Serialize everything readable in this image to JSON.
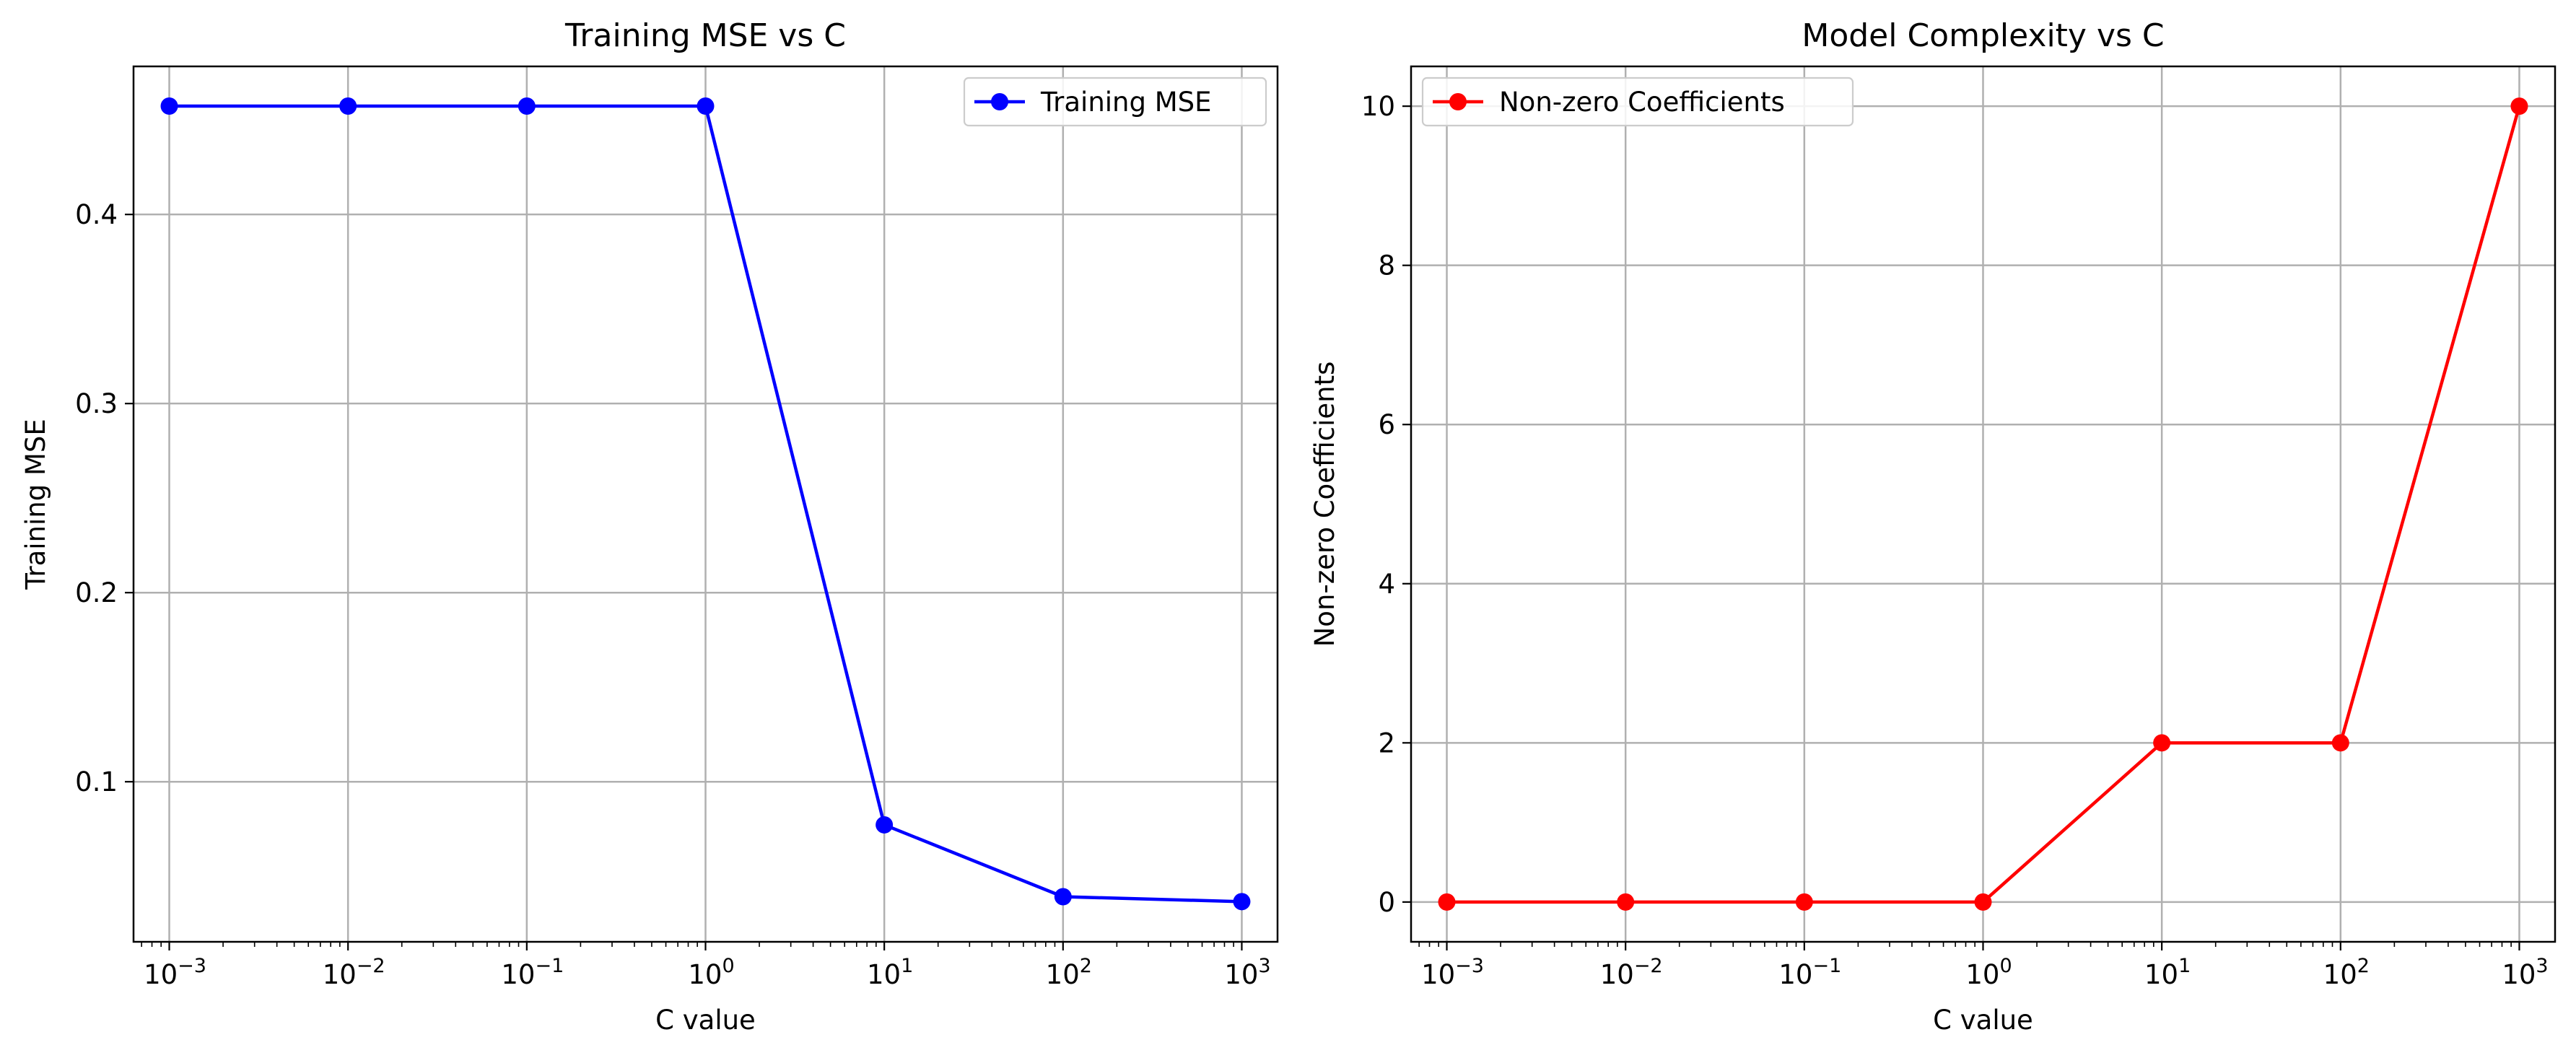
{
  "chart_data": [
    {
      "type": "line",
      "title": "Training MSE vs C",
      "xlabel": "C value",
      "ylabel": "Training MSE",
      "xscale": "log",
      "xlim": [
        0.000631,
        1585
      ],
      "ylim": [
        0.01535,
        0.4783
      ],
      "x": [
        0.001,
        0.01,
        0.1,
        1,
        10,
        100,
        1000
      ],
      "x_tick_labels": [
        {
          "base": "10",
          "exp": "−3"
        },
        {
          "base": "10",
          "exp": "−2"
        },
        {
          "base": "10",
          "exp": "−1"
        },
        {
          "base": "10",
          "exp": "0"
        },
        {
          "base": "10",
          "exp": "1"
        },
        {
          "base": "10",
          "exp": "2"
        },
        {
          "base": "10",
          "exp": "3"
        }
      ],
      "y_ticks": [
        0.1,
        0.2,
        0.3,
        0.4
      ],
      "y_tick_labels": [
        "0.1",
        "0.2",
        "0.3",
        "0.4"
      ],
      "grid": true,
      "legend_position": "top-right",
      "series": [
        {
          "name": "Training MSE",
          "color": "#0000ff",
          "marker": "circle",
          "values": [
            0.4573,
            0.4573,
            0.4573,
            0.4573,
            0.0772,
            0.0392,
            0.0366
          ]
        }
      ]
    },
    {
      "type": "line",
      "title": "Model Complexity vs C",
      "xlabel": "C value",
      "ylabel": "Non-zero Coefficients",
      "xscale": "log",
      "xlim": [
        0.000631,
        1585
      ],
      "ylim": [
        -0.5,
        10.5
      ],
      "x": [
        0.001,
        0.01,
        0.1,
        1,
        10,
        100,
        1000
      ],
      "x_tick_labels": [
        {
          "base": "10",
          "exp": "−3"
        },
        {
          "base": "10",
          "exp": "−2"
        },
        {
          "base": "10",
          "exp": "−1"
        },
        {
          "base": "10",
          "exp": "0"
        },
        {
          "base": "10",
          "exp": "1"
        },
        {
          "base": "10",
          "exp": "2"
        },
        {
          "base": "10",
          "exp": "3"
        }
      ],
      "y_ticks": [
        0,
        2,
        4,
        6,
        8,
        10
      ],
      "y_tick_labels": [
        "0",
        "2",
        "4",
        "6",
        "8",
        "10"
      ],
      "grid": true,
      "legend_position": "top-left",
      "series": [
        {
          "name": "Non-zero Coefficients",
          "color": "#ff0000",
          "marker": "circle",
          "values": [
            0,
            0,
            0,
            0,
            2,
            2,
            10
          ]
        }
      ]
    }
  ]
}
